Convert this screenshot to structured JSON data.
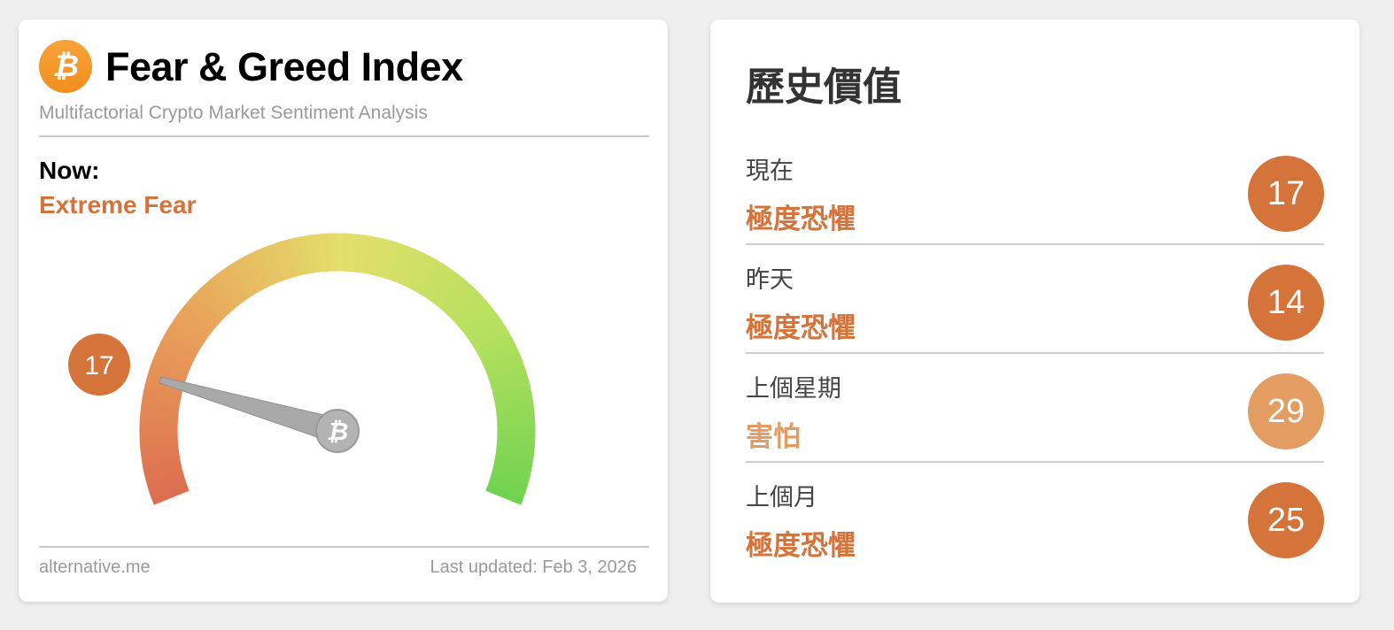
{
  "widget": {
    "title": "Fear & Greed Index",
    "subtitle": "Multifactorial Crypto Market Sentiment Analysis",
    "now_label": "Now:",
    "now_classification": "Extreme Fear",
    "value": "17",
    "gauge_value": 17,
    "source": "alternative.me",
    "last_updated": "Last updated: Feb 3, 2026",
    "logo_icon": "bitcoin-icon"
  },
  "history": {
    "title": "歷史價值",
    "rows": [
      {
        "label": "現在",
        "classification": "極度恐懼",
        "value": "17",
        "color": "#d4733a"
      },
      {
        "label": "昨天",
        "classification": "極度恐懼",
        "value": "14",
        "color": "#d4733a"
      },
      {
        "label": "上個星期",
        "classification": "害怕",
        "value": "29",
        "color": "#e39c62"
      },
      {
        "label": "上個月",
        "classification": "極度恐懼",
        "value": "25",
        "color": "#d4733a"
      }
    ]
  },
  "colors": {
    "extreme_fear": "#d4733a",
    "fear": "#e39c62",
    "bitcoin": "#f7931a"
  }
}
